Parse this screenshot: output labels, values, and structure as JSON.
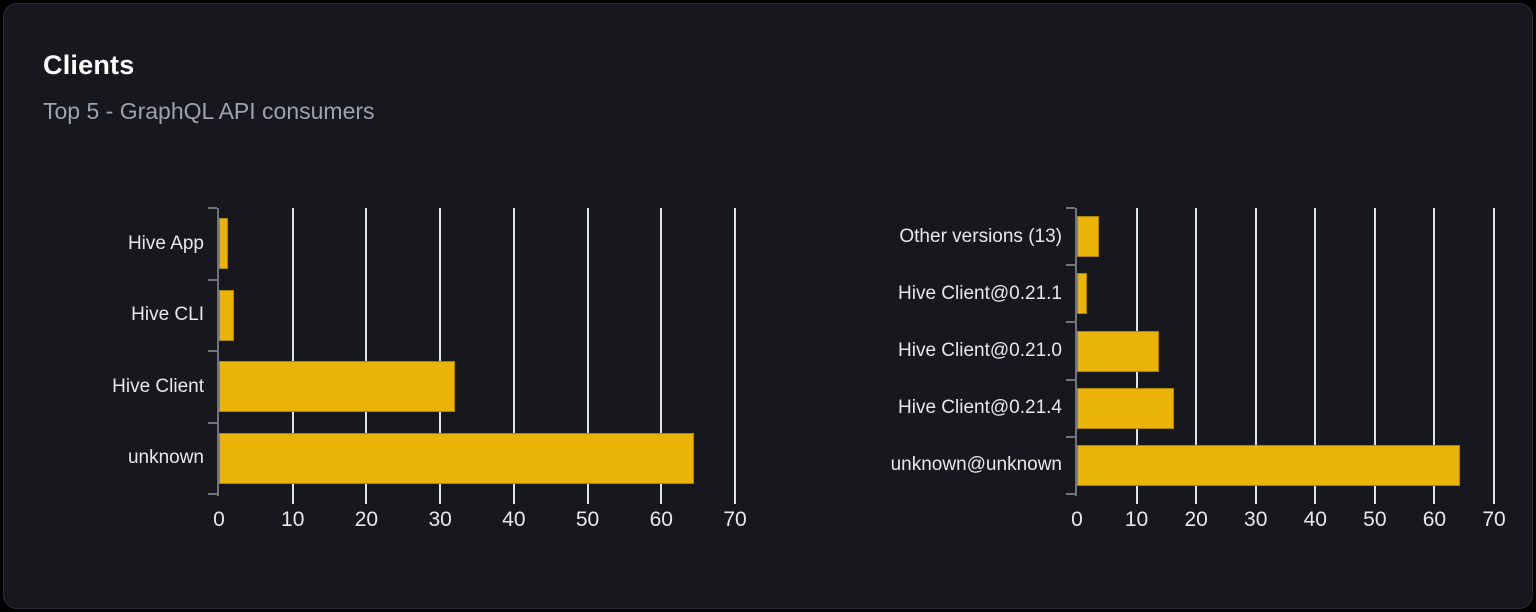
{
  "card": {
    "title": "Clients",
    "subtitle": "Top 5 - GraphQL API consumers"
  },
  "colors": {
    "page_background": "#000000",
    "card_background": "#16181d",
    "card_border": "#2b2e35",
    "title_text": "#ffffff",
    "subtitle_text": "#9ca3af",
    "bar_fill": "#eab308",
    "grid_line": "#dde3ea",
    "axis_line": "#70747d",
    "axis_text": "#e7e8ea"
  },
  "chart_data": [
    {
      "type": "bar",
      "orientation": "horizontal",
      "title": "",
      "categories": [
        "Hive App",
        "Hive CLI",
        "Hive Client",
        "unknown"
      ],
      "values": [
        1.2,
        2,
        32,
        64.5
      ],
      "xlabel": "",
      "ylabel": "",
      "xlim": [
        0,
        70
      ],
      "xticks": [
        0,
        10,
        20,
        30,
        40,
        50,
        60,
        70
      ],
      "grid": true,
      "legend": false
    },
    {
      "type": "bar",
      "orientation": "horizontal",
      "title": "",
      "categories": [
        "Other versions (13)",
        "Hive Client@0.21.1",
        "Hive Client@0.21.0",
        "Hive Client@0.21.4",
        "unknown@unknown"
      ],
      "values": [
        3.7,
        1.7,
        13.7,
        16.3,
        64.3
      ],
      "xlabel": "",
      "ylabel": "",
      "xlim": [
        0,
        70
      ],
      "xticks": [
        0,
        10,
        20,
        30,
        40,
        50,
        60,
        70
      ],
      "grid": true,
      "legend": false
    }
  ]
}
